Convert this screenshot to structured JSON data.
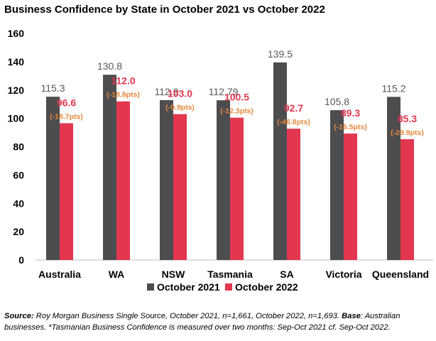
{
  "chart_data": {
    "type": "bar",
    "title": "Business Confidence by State in October 2021 vs October 2022",
    "xlabel": "",
    "ylabel": "",
    "ylim": [
      0,
      160
    ],
    "yticks": [
      0,
      20,
      40,
      60,
      80,
      100,
      120,
      140,
      160
    ],
    "grid": false,
    "legend_position": "bottom",
    "categories": [
      "Australia",
      "WA",
      "NSW",
      "Tasmania",
      "SA",
      "Victoria",
      "Queensland"
    ],
    "series": [
      {
        "name": "October 2021",
        "color": "#4d4d4f",
        "values": [
          115.3,
          130.8,
          112.9,
          112.79,
          139.5,
          105.8,
          115.2
        ],
        "labels": [
          "115.3",
          "130.8",
          "112.9",
          "112.79",
          "139.5",
          "105.8",
          "115.2"
        ]
      },
      {
        "name": "October 2022",
        "color": "#e2374f",
        "values": [
          96.6,
          112.0,
          103.0,
          100.5,
          92.7,
          89.3,
          85.3
        ],
        "labels": [
          "96.6",
          "112.0",
          "103.0",
          "100.5",
          "92.7",
          "89.3",
          "85.3"
        ]
      }
    ],
    "annotations": {
      "color": "#e8883c",
      "labels": [
        "(-18.7pts)",
        "(-18.8pts)",
        "(-9.9pts)",
        "(-12.3pts)",
        "(-46.8pts)",
        "(-16.5pts)",
        "(-29.9pts)"
      ]
    }
  },
  "footnote": {
    "source_label": "Source:",
    "source_text": " Roy Morgan Business Single Source, October 2021, n=1,661, October 2022, n=1,693. ",
    "base_label": "Base",
    "base_text": ": Australian businesses. *Tasmanian Business Confidence is measured over two months: Sep-Oct 2021 cf. Sep-Oct 2022."
  }
}
